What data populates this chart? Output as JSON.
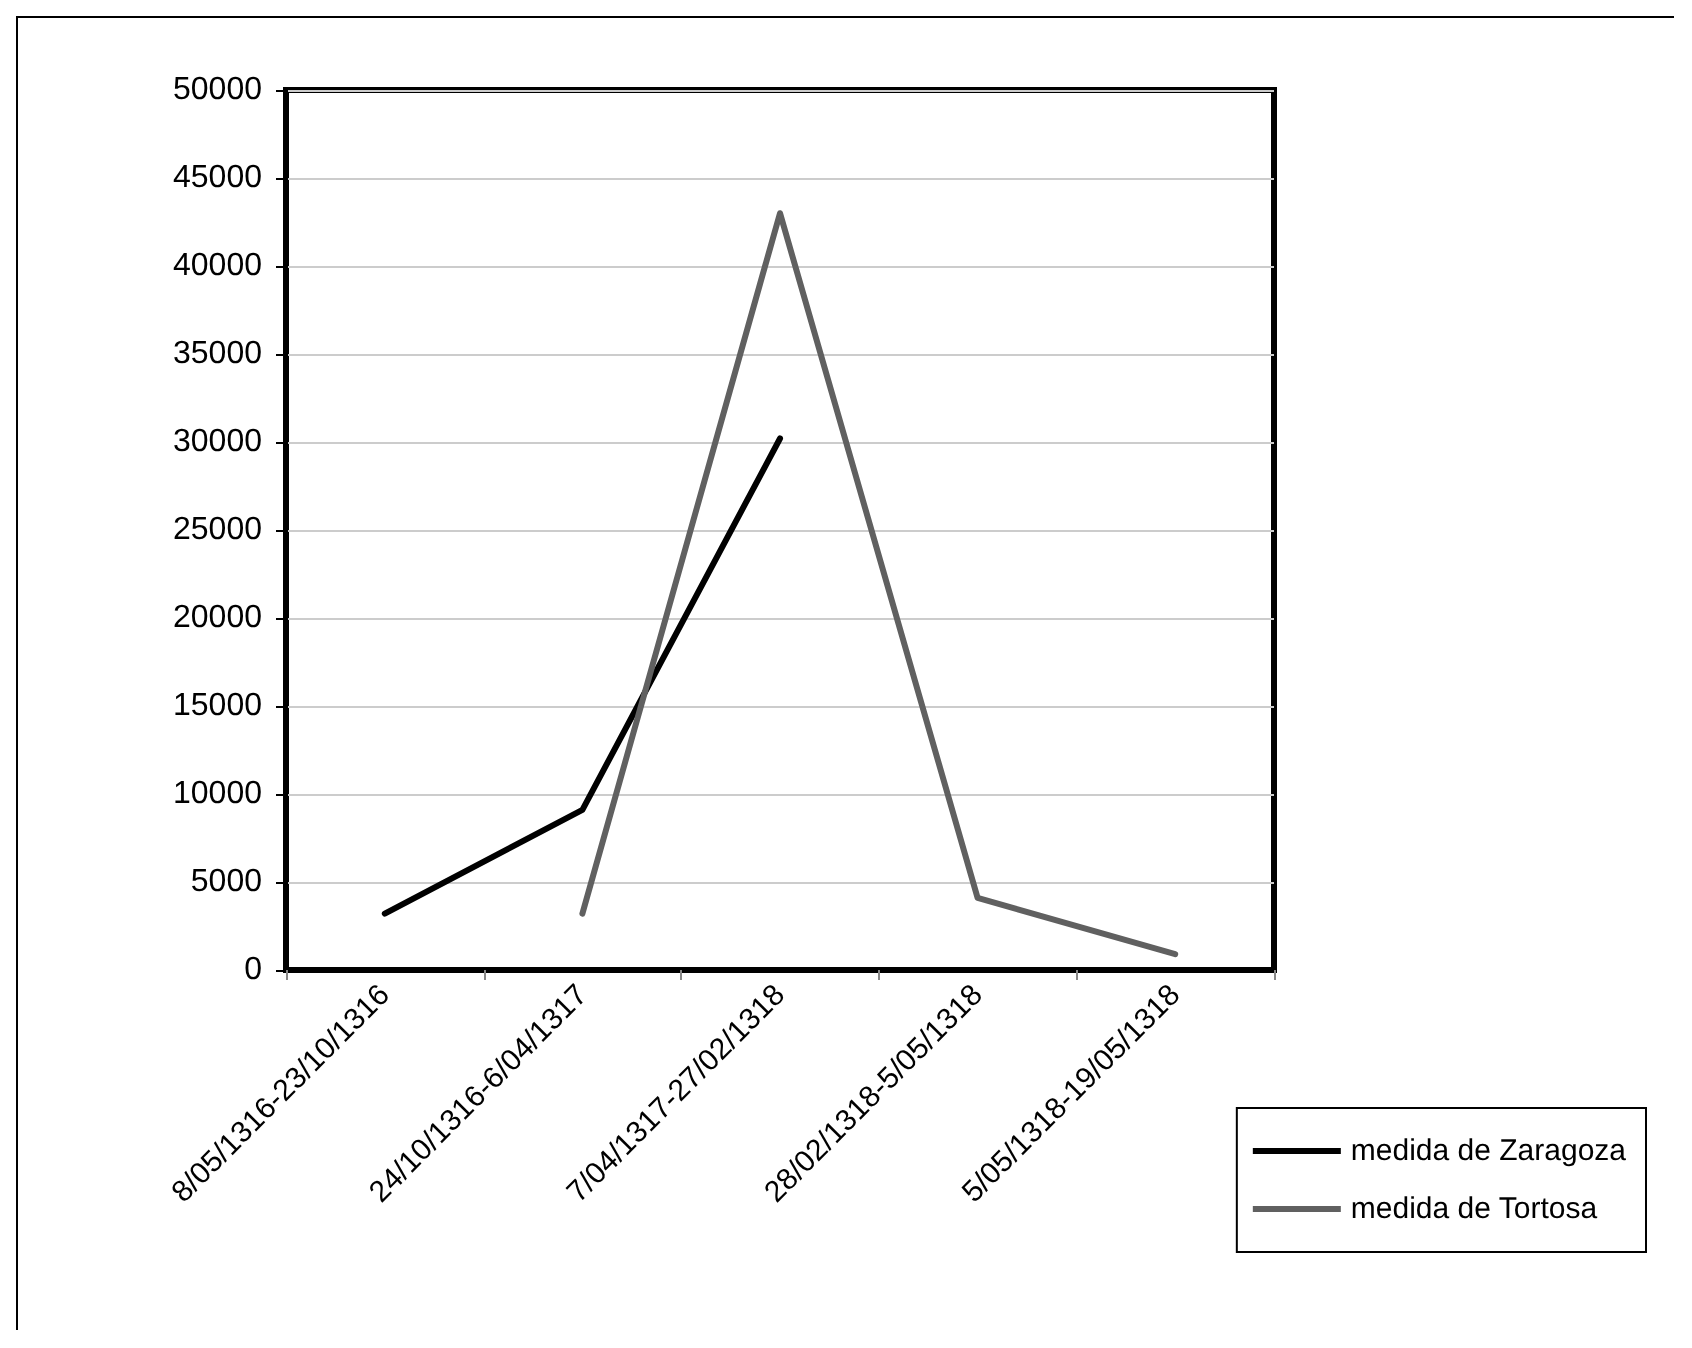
{
  "chart_data": {
    "type": "line",
    "categories": [
      "8/05/1316-23/10/1316",
      "24/10/1316-6/04/1317",
      "7/04/1317-27/02/1318",
      "28/02/1318-5/05/1318",
      "5/05/1318-19/05/1318"
    ],
    "series": [
      {
        "name": "medida de Zaragoza",
        "color": "#000000",
        "values": [
          3200,
          9100,
          30200,
          null,
          null
        ]
      },
      {
        "name": "medida de Tortosa",
        "color": "#606060",
        "values": [
          null,
          3200,
          43000,
          4100,
          900
        ]
      }
    ],
    "ylim": [
      0,
      50000
    ],
    "yticks": [
      0,
      5000,
      10000,
      15000,
      20000,
      25000,
      30000,
      35000,
      40000,
      45000,
      50000
    ],
    "grid": "y",
    "legend": "bottom right",
    "marker": "none",
    "line_style": "solid"
  }
}
